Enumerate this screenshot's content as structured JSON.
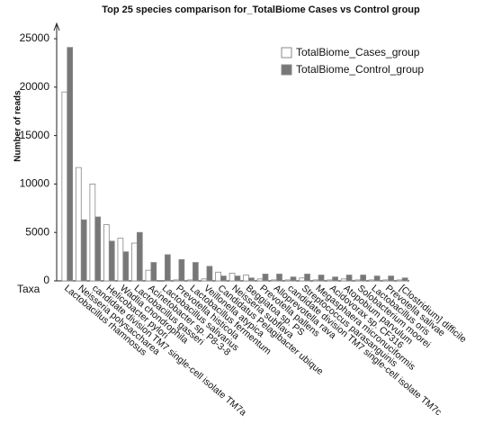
{
  "chart_data": {
    "type": "bar",
    "title": "Top 25 species comparison for_TotalBiome Cases vs Control group",
    "y_label": "Number of reads",
    "x_label": "Taxa",
    "categories": [
      "Lactobacillus rhamnosus",
      "Neisseria polysaccharea",
      "candidate division TM7 single-cell isolate TM7a",
      "Helicobacter pylori",
      "Wadlia chondrophila",
      "Lactobacillus gasseri",
      "Acinetobacter sp. P8-3-8",
      "Lactobacillus salivarius",
      "Prevotella histicola",
      "Lactobacillus fermentum",
      "Veillonella atypica",
      "Candidatus Pelagibacter ubique",
      "Neisseria subflava",
      "Beggiatoa sp. PS",
      "Prevotella pallens",
      "Alloprevotella rava",
      "candidate division TM7 single-cell isolate TM7c",
      "Streptococcus parasanguinis",
      "Megasphaera micronuciformis",
      "Acidovorax sp. CF316",
      "Atopobium parvulum",
      "Solobacterium moorei",
      "Lactobacillus oris",
      "Prevotella salivae",
      "[Clostridium] difficile"
    ],
    "series": [
      {
        "name": "TotalBiome_Cases_group",
        "color": "#ffffff",
        "values": [
          19500,
          11700,
          10000,
          5800,
          4400,
          3900,
          1100,
          0,
          100,
          100,
          200,
          900,
          800,
          600,
          200,
          100,
          100,
          300,
          100,
          100,
          200,
          100,
          100,
          100,
          100
        ]
      },
      {
        "name": "TotalBiome_Control_group",
        "color": "#777777",
        "values": [
          24100,
          6300,
          6600,
          4100,
          3000,
          5000,
          1900,
          2700,
          2200,
          1900,
          1500,
          500,
          500,
          300,
          700,
          700,
          400,
          700,
          600,
          400,
          600,
          600,
          500,
          500,
          300
        ]
      }
    ],
    "ylim": [
      0,
      25000
    ],
    "yticks": [
      0,
      5000,
      10000,
      15000,
      20000,
      25000
    ],
    "grid": false,
    "legend": "top-right"
  }
}
